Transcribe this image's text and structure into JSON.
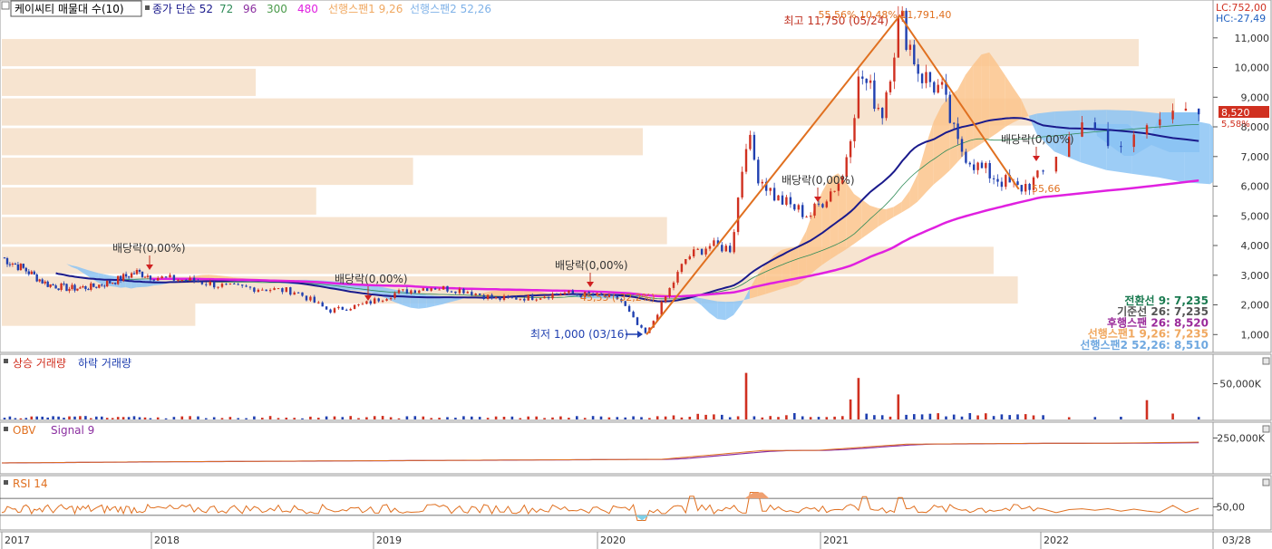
{
  "title_box": "케이씨티 매물대 수(10)",
  "legend_main": [
    {
      "text": "종가 단순 52",
      "color": "#1a1a8c"
    },
    {
      "text": "72",
      "color": "#2e8b57"
    },
    {
      "text": "96",
      "color": "#8b2fa0"
    },
    {
      "text": "300",
      "color": "#4a9a4a"
    },
    {
      "text": "480",
      "color": "#e020e0"
    },
    {
      "text": "선행스팬1 9,26",
      "color": "#f0a860"
    },
    {
      "text": "선행스팬2 52,26",
      "color": "#7fb2e8"
    }
  ],
  "lc_label": "LC:752,00",
  "hc_label": "HC:-27,49",
  "price_badge": "8,520",
  "price_change": "5,58%",
  "colors": {
    "up": "#d03020",
    "down": "#2040b0",
    "cloud_orange": "#fbc48c",
    "cloud_blue": "#8cc4f4",
    "volume_profile": "#f7e4d0"
  },
  "annotations": {
    "high": "최고 11,750 (05/24)",
    "low": "최저 1,000 (03/16)",
    "fib": "55,56% 10,48% 11,791,40",
    "inner_label": "55,66",
    "small_pct": "45,55 (-32,2%)",
    "dividends": [
      "배당락(0,00%)",
      "배당락(0,00%)",
      "배당락(0,00%)",
      "배당락(0,00%)",
      "배당락(0,00%)"
    ]
  },
  "info_lines": [
    {
      "text": "전환선 9: 7,235",
      "color": "#1a7a50"
    },
    {
      "text": "기준선 26: 7,235",
      "color": "#555555"
    },
    {
      "text": "후행스팬 26: 8,520",
      "color": "#9a2a9a"
    },
    {
      "text": "선행스팬1 9,26: 7,235",
      "color": "#f0a860"
    },
    {
      "text": "선행스팬2 52,26: 8,510",
      "color": "#6fa8e0"
    }
  ],
  "volume_title": [
    {
      "text": "상승 거래량",
      "color": "#d03020"
    },
    {
      "text": "하락 거래량",
      "color": "#2040b0"
    }
  ],
  "obv_title": [
    {
      "text": "OBV",
      "color": "#e07020"
    },
    {
      "text": "Signal 9",
      "color": "#8b2fa0"
    }
  ],
  "rsi_title": [
    {
      "text": "RSI 14",
      "color": "#e07020"
    }
  ],
  "chart_data": {
    "type": "candlestick",
    "price_axis_ticks": [
      1000,
      2000,
      3000,
      4000,
      5000,
      6000,
      7000,
      8000,
      9000,
      10000,
      11000
    ],
    "price_axis_labels": [
      "1,000",
      "2,000",
      "3,000",
      "4,000",
      "5,000",
      "6,000",
      "7,000",
      "8,000",
      "9,000",
      "10,000",
      "11,000"
    ],
    "price_range": [
      0,
      12000
    ],
    "year_ticks": [
      2017.0,
      2018.0,
      2019.0,
      2020.0,
      2021.0,
      2022.0,
      2022.24
    ],
    "year_labels": [
      "2017",
      "2018",
      "2019",
      "2020",
      "2021",
      "2022",
      "03/28"
    ],
    "price_path": [
      [
        2017.0,
        3600
      ],
      [
        2017.15,
        3200
      ],
      [
        2017.3,
        2700
      ],
      [
        2017.45,
        2550
      ],
      [
        2017.6,
        2600
      ],
      [
        2017.75,
        2800
      ],
      [
        2017.9,
        3100
      ],
      [
        2018.05,
        2900
      ],
      [
        2018.2,
        2800
      ],
      [
        2018.35,
        2600
      ],
      [
        2018.5,
        2550
      ],
      [
        2018.65,
        2450
      ],
      [
        2018.8,
        1800
      ],
      [
        2018.95,
        2000
      ],
      [
        2019.1,
        2400
      ],
      [
        2019.25,
        2600
      ],
      [
        2019.4,
        2500
      ],
      [
        2019.55,
        2200
      ],
      [
        2019.7,
        2250
      ],
      [
        2019.85,
        2400
      ],
      [
        2020.0,
        2300
      ],
      [
        2020.1,
        2200
      ],
      [
        2020.18,
        1300
      ],
      [
        2020.22,
        1000
      ],
      [
        2020.3,
        2200
      ],
      [
        2020.4,
        3600
      ],
      [
        2020.5,
        4000
      ],
      [
        2020.6,
        3900
      ],
      [
        2020.67,
        7800
      ],
      [
        2020.72,
        6400
      ],
      [
        2020.8,
        5600
      ],
      [
        2020.95,
        5000
      ],
      [
        2021.1,
        6300
      ],
      [
        2021.18,
        9800
      ],
      [
        2021.28,
        8500
      ],
      [
        2021.36,
        11750
      ],
      [
        2021.45,
        9800
      ],
      [
        2021.55,
        9200
      ],
      [
        2021.62,
        7400
      ],
      [
        2021.72,
        6600
      ],
      [
        2021.82,
        6200
      ],
      [
        2021.9,
        5900
      ],
      [
        2022.0,
        6300
      ],
      [
        2022.05,
        8200
      ],
      [
        2022.12,
        7300
      ],
      [
        2022.18,
        8520
      ]
    ],
    "volume_profile_rows": [
      {
        "price": 1750,
        "strength": 0.16
      },
      {
        "price": 2500,
        "strength": 0.84
      },
      {
        "price": 3500,
        "strength": 0.82
      },
      {
        "price": 4500,
        "strength": 0.55
      },
      {
        "price": 5500,
        "strength": 0.26
      },
      {
        "price": 6500,
        "strength": 0.34
      },
      {
        "price": 7500,
        "strength": 0.53
      },
      {
        "price": 8500,
        "strength": 0.97
      },
      {
        "price": 9500,
        "strength": 0.21
      },
      {
        "price": 10500,
        "strength": 0.94
      }
    ],
    "volume_axis": {
      "ticks": [
        50000
      ],
      "labels": [
        "50,000K"
      ],
      "range": [
        0,
        90000
      ]
    },
    "obv_axis": {
      "ticks": [
        250000
      ],
      "labels": [
        "250,000K"
      ],
      "range": [
        -100000,
        400000
      ]
    },
    "rsi_axis": {
      "ticks": [
        50
      ],
      "labels": [
        "50,00"
      ],
      "range": [
        0,
        100
      ],
      "bands": [
        30,
        70
      ]
    }
  }
}
